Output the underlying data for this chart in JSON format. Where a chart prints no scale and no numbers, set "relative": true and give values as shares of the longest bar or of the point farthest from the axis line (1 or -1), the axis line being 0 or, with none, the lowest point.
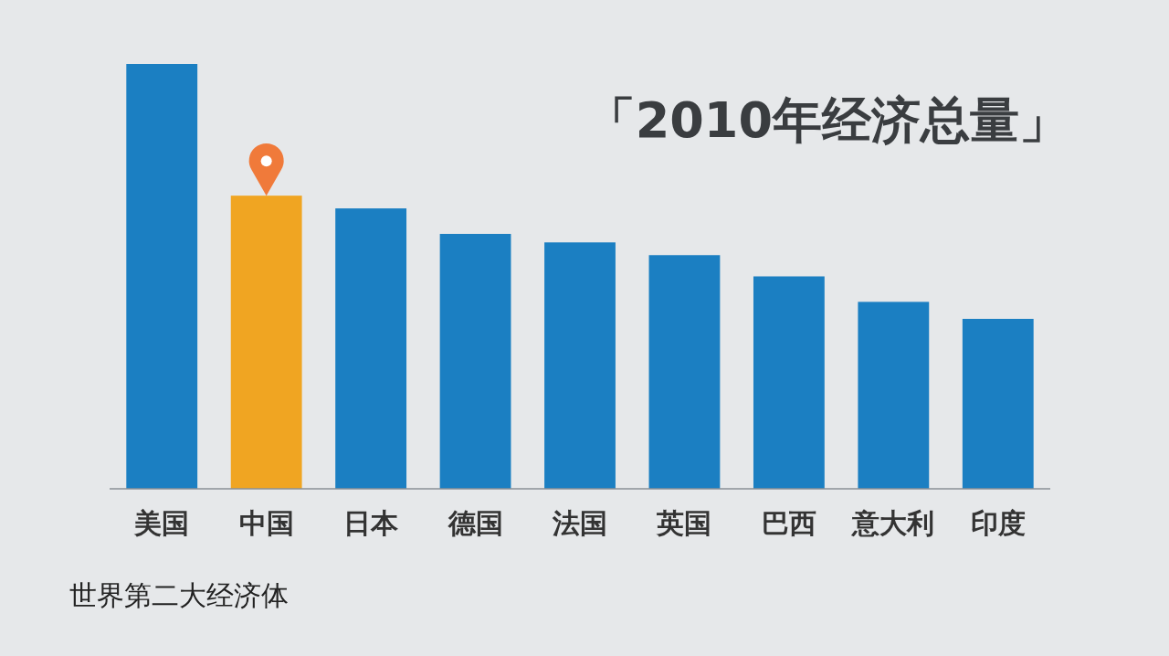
{
  "chart_data": {
    "type": "bar",
    "title": "「2010年经济总量」",
    "relative": true,
    "categories": [
      "美国",
      "中国",
      "日本",
      "德国",
      "法国",
      "英国",
      "巴西",
      "意大利",
      "印度"
    ],
    "values": [
      1,
      0.69,
      0.66,
      0.6,
      0.58,
      0.55,
      0.5,
      0.44,
      0.4
    ],
    "colors": [
      "#1b7fc2",
      "#f0a522",
      "#1b7fc2",
      "#1b7fc2",
      "#1b7fc2",
      "#1b7fc2",
      "#1b7fc2",
      "#1b7fc2",
      "#1b7fc2"
    ],
    "annotations": [
      "世界第二大经济体"
    ]
  }
}
